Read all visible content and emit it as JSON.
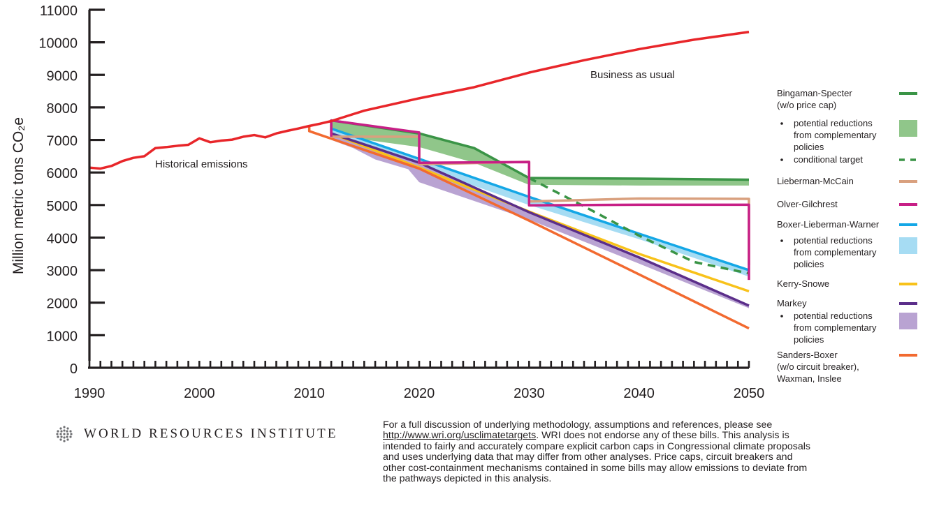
{
  "chart_data": {
    "type": "line",
    "ylabel": "Million metric tons CO₂e",
    "xlabel": "",
    "xlim": [
      1990,
      2050
    ],
    "ylim": [
      0,
      11000
    ],
    "x_ticks": [
      1990,
      2000,
      2010,
      2020,
      2030,
      2040,
      2050
    ],
    "y_ticks": [
      0,
      1000,
      2000,
      3000,
      4000,
      5000,
      6000,
      7000,
      8000,
      9000,
      10000,
      11000
    ],
    "grid": false,
    "legend_position": "right",
    "annotations": [
      "Business as usual",
      "Historical emissions"
    ],
    "series": [
      {
        "name": "Historical emissions",
        "color": "#e8262a",
        "kind": "line",
        "x": [
          1990,
          1991,
          1992,
          1993,
          1994,
          1995,
          1996,
          1997,
          1998,
          1999,
          2000,
          2001,
          2002,
          2003,
          2004,
          2005,
          2006,
          2007,
          2008,
          2009,
          2010,
          2011,
          2012
        ],
        "y": [
          6150,
          6120,
          6200,
          6350,
          6450,
          6500,
          6750,
          6780,
          6820,
          6850,
          7050,
          6930,
          6980,
          7010,
          7100,
          7150,
          7080,
          7200,
          7280,
          7350,
          7430,
          7500,
          7580
        ]
      },
      {
        "name": "Business as usual",
        "color": "#e8262a",
        "kind": "line",
        "x": [
          2012,
          2015,
          2020,
          2025,
          2030,
          2035,
          2040,
          2045,
          2050
        ],
        "y": [
          7580,
          7900,
          8280,
          8620,
          9070,
          9450,
          9790,
          10080,
          10320
        ]
      },
      {
        "name": "Bingaman-Specter (w/o price cap)",
        "color": "#3a9446",
        "kind": "line",
        "x": [
          2012,
          2012,
          2020,
          2025,
          2030,
          2040,
          2050
        ],
        "y": [
          7100,
          7600,
          7200,
          6750,
          5830,
          5810,
          5780
        ]
      },
      {
        "name": "potential reductions from complementary policies",
        "color": "#90c68a",
        "kind": "band",
        "x": [
          2012,
          2020,
          2025,
          2030,
          2040,
          2050
        ],
        "upper": [
          7600,
          7200,
          6750,
          5830,
          5810,
          5780
        ],
        "lower": [
          7150,
          6780,
          6300,
          5620,
          5600,
          5600
        ]
      },
      {
        "name": "conditional target",
        "color": "#3a9446",
        "kind": "dashed",
        "x": [
          2030,
          2035,
          2040,
          2045,
          2050
        ],
        "y": [
          5830,
          4960,
          4060,
          3250,
          2900
        ]
      },
      {
        "name": "Lieberman-McCain",
        "color": "#d9a07e",
        "kind": "line",
        "x": [
          2012,
          2012,
          2020,
          2020,
          2030,
          2030,
          2040,
          2050,
          2050
        ],
        "y": [
          7580,
          7100,
          7100,
          6250,
          6330,
          5110,
          5200,
          5190,
          3150
        ]
      },
      {
        "name": "Olver-Gilchrest",
        "color": "#c71f86",
        "kind": "line",
        "x": [
          2012,
          2012,
          2020,
          2020,
          2030,
          2030,
          2040,
          2050,
          2050
        ],
        "y": [
          7100,
          7600,
          7230,
          6300,
          6320,
          4990,
          5010,
          5010,
          2700
        ]
      },
      {
        "name": "Boxer-Lieberman-Warner",
        "color": "#14a7e6",
        "kind": "line",
        "x": [
          2012,
          2020,
          2030,
          2040,
          2050
        ],
        "y": [
          7350,
          6420,
          5250,
          4120,
          3000
        ]
      },
      {
        "name": "potential reductions from complementary policies",
        "color": "#a6dcf3",
        "kind": "band",
        "x": [
          2012,
          2020,
          2030,
          2040,
          2050
        ],
        "upper": [
          7350,
          6420,
          5250,
          4120,
          3000
        ],
        "lower": [
          7150,
          6180,
          5000,
          3950,
          2800
        ]
      },
      {
        "name": "Kerry-Snowe",
        "color": "#f8c21a",
        "kind": "line",
        "x": [
          2012,
          2020,
          2030,
          2040,
          2050
        ],
        "y": [
          7200,
          6150,
          4800,
          3500,
          2350
        ]
      },
      {
        "name": "Markey",
        "color": "#5b2e8a",
        "kind": "line",
        "x": [
          2012,
          2020,
          2030,
          2040,
          2050
        ],
        "y": [
          7200,
          6300,
          4780,
          3390,
          1910
        ]
      },
      {
        "name": "potential reductions from complementary policies",
        "color": "#b9a3d2",
        "kind": "band",
        "x": [
          2012,
          2014,
          2016,
          2019,
          2020,
          2030,
          2040,
          2050
        ],
        "upper": [
          7200,
          6950,
          6750,
          6400,
          6300,
          4780,
          3390,
          1910
        ],
        "lower": [
          7000,
          6750,
          6400,
          6100,
          5700,
          4550,
          3200,
          1830
        ]
      },
      {
        "name": "Sanders-Boxer (w/o circuit breaker), Waxman, Inslee",
        "color": "#f26a30",
        "kind": "line",
        "x": [
          2010,
          2010,
          2020,
          2030,
          2040,
          2050
        ],
        "y": [
          7430,
          7270,
          6120,
          4520,
          2870,
          1210
        ]
      }
    ]
  },
  "legend": {
    "entries": [
      {
        "lines": [
          "Bingaman-Specter",
          "(w/o price cap)"
        ],
        "swatch": "line",
        "color": "#3a9446",
        "indent": false
      },
      {
        "lines": [
          "potential reductions",
          "from complementary",
          "policies"
        ],
        "swatch": "box",
        "color": "#90c68a",
        "indent": true
      },
      {
        "lines": [
          "conditional target"
        ],
        "swatch": "dash",
        "color": "#3a9446",
        "indent": true
      },
      {
        "lines": [
          "Lieberman-McCain"
        ],
        "swatch": "line",
        "color": "#d9a07e",
        "indent": false
      },
      {
        "lines": [
          "Olver-Gilchrest"
        ],
        "swatch": "line",
        "color": "#c71f86",
        "indent": false
      },
      {
        "lines": [
          "Boxer-Lieberman-Warner"
        ],
        "swatch": "line",
        "color": "#14a7e6",
        "indent": false
      },
      {
        "lines": [
          "potential reductions",
          "from complementary",
          "policies"
        ],
        "swatch": "box",
        "color": "#a6dcf3",
        "indent": true
      },
      {
        "lines": [
          "Kerry-Snowe"
        ],
        "swatch": "line",
        "color": "#f8c21a",
        "indent": false
      },
      {
        "lines": [
          "Markey"
        ],
        "swatch": "line",
        "color": "#5b2e8a",
        "indent": false
      },
      {
        "lines": [
          "potential reductions",
          "from complementary",
          "policies"
        ],
        "swatch": "box",
        "color": "#b9a3d2",
        "indent": true
      },
      {
        "lines": [
          "Sanders-Boxer",
          "(w/o circuit breaker),",
          "Waxman, Inslee"
        ],
        "swatch": "line",
        "color": "#f26a30",
        "indent": false
      }
    ]
  },
  "footer": {
    "logo_text": "WORLD RESOURCES INSTITUTE",
    "note_before_link": "For a full discussion of underlying methodology, assumptions and references, please see ",
    "note_link": "http://www.wri.org/usclimatetargets",
    "note_after_link": ". WRI does not endorse any of these bills. This analysis is intended to fairly and accurately compare explicit carbon caps in Congressional climate proposals and uses underlying data that may differ from other analyses. Price caps, circuit breakers and other cost-containment mechanisms contained in some bills may allow emissions to deviate from the pathways depicted in this analysis."
  }
}
